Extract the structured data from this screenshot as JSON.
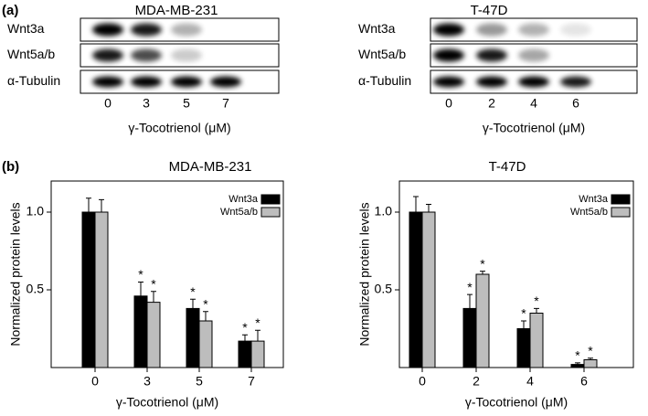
{
  "panel_labels": [
    "(a)",
    "(b)"
  ],
  "blots": [
    {
      "title": "MDA-MB-231",
      "rows": [
        "Wnt3a",
        "Wnt5a/b",
        "α-Tubulin"
      ],
      "lanes": [
        "0",
        "3",
        "5",
        "7"
      ],
      "xlabel": "γ-Tocotrienol (μM)"
    },
    {
      "title": "T-47D",
      "rows": [
        "Wnt3a",
        "Wnt5a/b",
        "α-Tubulin"
      ],
      "lanes": [
        "0",
        "2",
        "4",
        "6"
      ],
      "xlabel": "γ-Tocotrienol (μM)"
    }
  ],
  "chart_data": [
    {
      "type": "bar",
      "title": "MDA-MB-231",
      "xlabel": "γ-Tocotrienol (μM)",
      "ylabel": "Normalized protein levels",
      "categories": [
        "0",
        "3",
        "5",
        "7"
      ],
      "series": [
        {
          "name": "Wnt3a",
          "color": "#000000",
          "values": [
            1.0,
            0.46,
            0.38,
            0.17
          ],
          "errors": [
            0.09,
            0.09,
            0.06,
            0.04
          ],
          "markers": [
            null,
            "*",
            "*",
            "*"
          ]
        },
        {
          "name": "Wnt5a/b",
          "color": "#bdbdbd",
          "values": [
            1.0,
            0.42,
            0.3,
            0.17
          ],
          "errors": [
            0.08,
            0.07,
            0.06,
            0.07
          ],
          "markers": [
            null,
            "*",
            "*",
            "*"
          ]
        }
      ],
      "ylim": [
        0,
        1.2
      ],
      "yticks": [
        0.5,
        {
          "value": 1,
          "label": "1.0"
        }
      ],
      "legend": "upper right"
    },
    {
      "type": "bar",
      "title": "T-47D",
      "xlabel": "γ-Tocotrienol (μM)",
      "ylabel": "Normalized protein levels",
      "categories": [
        "0",
        "2",
        "4",
        "6"
      ],
      "series": [
        {
          "name": "Wnt3a",
          "color": "#000000",
          "values": [
            1.0,
            0.38,
            0.25,
            0.02
          ],
          "errors": [
            0.1,
            0.09,
            0.05,
            0.01
          ],
          "markers": [
            null,
            "*",
            "*",
            "*"
          ]
        },
        {
          "name": "Wnt5a/b",
          "color": "#bdbdbd",
          "values": [
            1.0,
            0.6,
            0.35,
            0.05
          ],
          "errors": [
            0.05,
            0.02,
            0.03,
            0.01
          ],
          "markers": [
            null,
            "*",
            "*",
            "*"
          ]
        }
      ],
      "ylim": [
        0,
        1.2
      ],
      "yticks": [
        0.5,
        {
          "value": 1,
          "label": "1.0"
        }
      ],
      "legend": "upper right"
    }
  ]
}
